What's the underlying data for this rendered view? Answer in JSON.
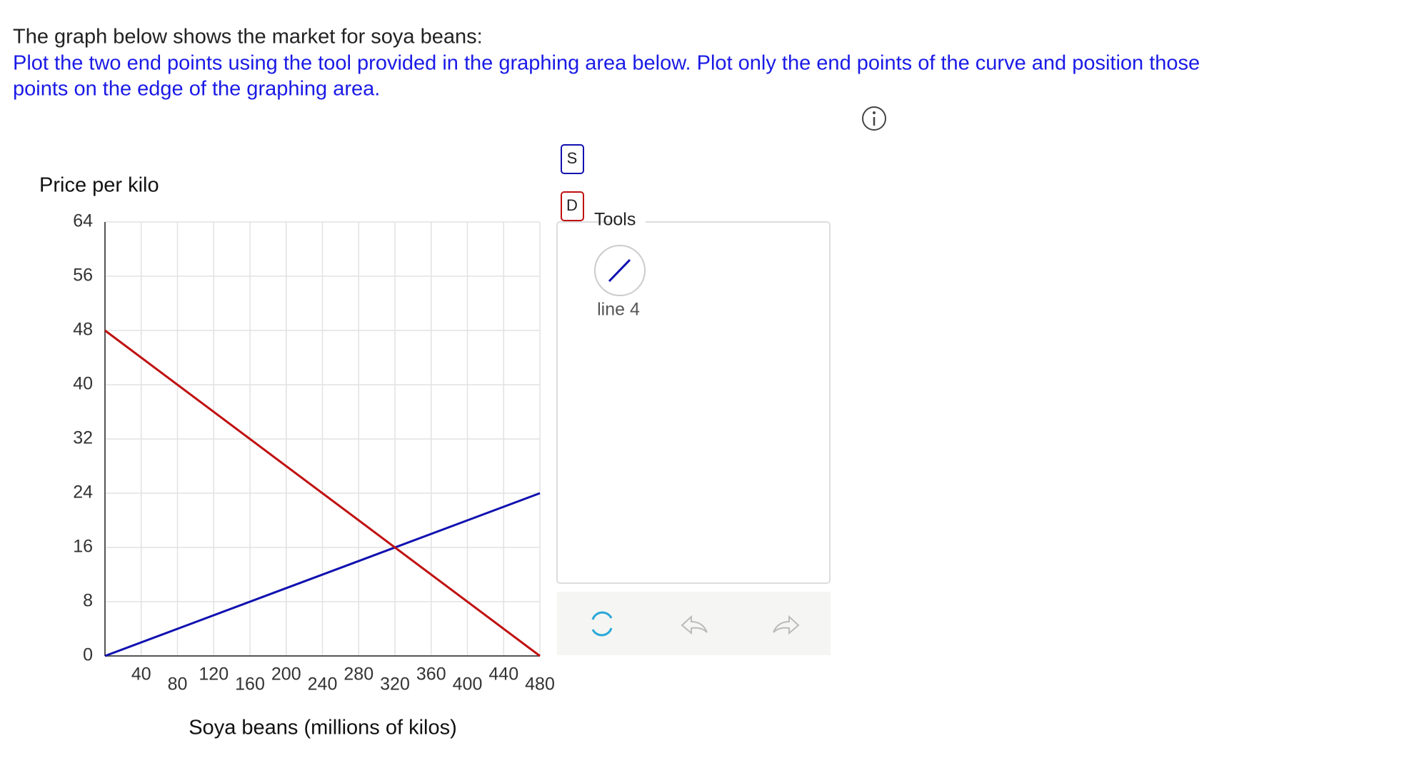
{
  "question": {
    "intro": "The graph below shows the market for soya beans:",
    "instruction_lines": [
      "Plot the two end points using the tool provided in the graphing area below. Plot only the end points of the curve and position those",
      "points on the edge of the graphing area."
    ]
  },
  "chart_data": {
    "type": "line",
    "y_label": "Price per kilo",
    "x_label": "Soya beans (millions of kilos)",
    "x": [
      0,
      480
    ],
    "series": [
      {
        "name": "S",
        "color": "#1010b0",
        "values": [
          0,
          24
        ]
      },
      {
        "name": "D",
        "color": "#c01010",
        "values": [
          48,
          0
        ]
      }
    ],
    "xlim": [
      0,
      480
    ],
    "xticks": [
      40,
      80,
      120,
      160,
      200,
      240,
      280,
      320,
      360,
      400,
      440,
      480
    ],
    "ylim": [
      0,
      64
    ],
    "yticks": [
      0,
      8,
      16,
      24,
      32,
      40,
      48,
      56,
      64
    ],
    "grid": true
  },
  "tools": {
    "title": "Tools",
    "items": [
      {
        "label": "line 4"
      }
    ]
  }
}
